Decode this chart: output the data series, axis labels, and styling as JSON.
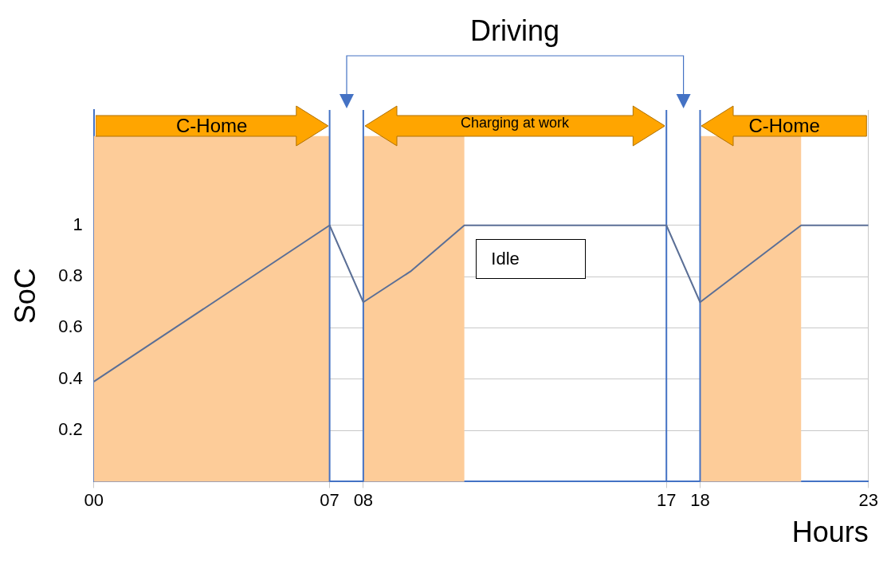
{
  "chart_data": {
    "type": "line",
    "xlabel": "Hours",
    "ylabel": "SoC",
    "x": [
      0,
      7,
      8,
      9.4,
      11,
      17,
      18,
      21,
      23
    ],
    "series": [
      {
        "color": "#5b6f96",
        "values": [
          0.39,
          1.0,
          0.7,
          0.82,
          1.0,
          1.0,
          0.7,
          1.0,
          1.0
        ]
      }
    ],
    "xlim": [
      0,
      23
    ],
    "xticks": [
      {
        "value": 0,
        "label": "00"
      },
      {
        "value": 7,
        "label": "07"
      },
      {
        "value": 8,
        "label": "08"
      },
      17,
      18,
      23
    ],
    "ylim": [
      0,
      1.45
    ],
    "yticks": [
      0.2,
      0.4,
      0.6,
      0.8,
      1
    ],
    "grid": true,
    "legend": false,
    "marker": "none",
    "line_style": "solid",
    "bands": [
      {
        "axis": "x",
        "from": 0,
        "to": 7,
        "color": "#fdcc99"
      },
      {
        "axis": "x",
        "from": 8,
        "to": 11,
        "color": "#fdcc99"
      },
      {
        "axis": "x",
        "from": 18,
        "to": 21,
        "color": "#fdcc99"
      }
    ],
    "ref_lines": [
      {
        "axis": "x",
        "value": 7,
        "color": "#4472c4"
      },
      {
        "axis": "x",
        "value": 8,
        "color": "#4472c4"
      },
      {
        "axis": "x",
        "value": 17,
        "color": "#4472c4"
      },
      {
        "axis": "x",
        "value": 18,
        "color": "#4472c4"
      }
    ],
    "annotations": [
      "Driving",
      "C-Home",
      "Charging at work",
      "C-Home",
      "Idle"
    ]
  }
}
